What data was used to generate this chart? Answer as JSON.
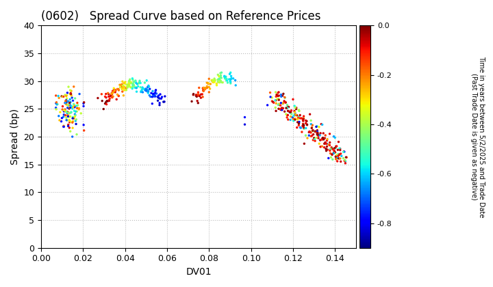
{
  "title": "(0602)   Spread Curve based on Reference Prices",
  "xlabel": "DV01",
  "ylabel": "Spread (bp)",
  "xlim": [
    0.0,
    0.15
  ],
  "ylim": [
    0,
    40
  ],
  "xticks": [
    0.0,
    0.02,
    0.04,
    0.06,
    0.08,
    0.1,
    0.12,
    0.14
  ],
  "yticks": [
    0,
    5,
    10,
    15,
    20,
    25,
    30,
    35,
    40
  ],
  "colorbar_label_line1": "Time in years between 5/2/2025 and Trade Date",
  "colorbar_label_line2": "(Past Trade Date is given as negative)",
  "cmap": "jet",
  "vmin": -0.9,
  "vmax": 0.0,
  "marker_size": 6,
  "background_color": "#ffffff",
  "grid_color": "#bbbbbb"
}
